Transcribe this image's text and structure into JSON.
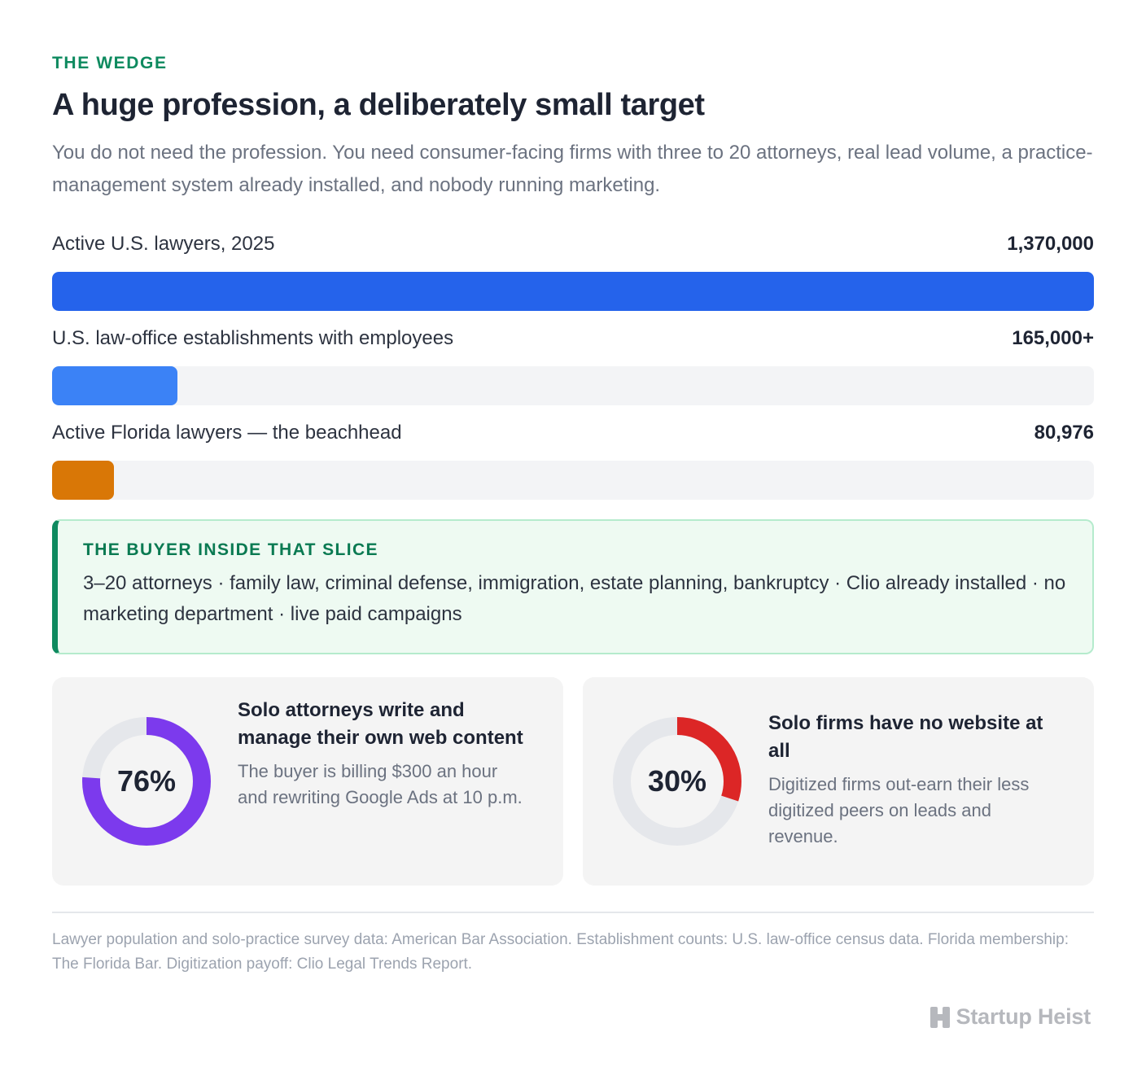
{
  "header": {
    "eyebrow": "THE WEDGE",
    "title": "A huge profession, a deliberately small target",
    "subtitle": "You do not need the profession. You need consumer-facing firms with three to 20 attorneys, real lead volume, a practice-management system already installed, and nobody running marketing."
  },
  "chart_data": {
    "type": "bar",
    "orientation": "horizontal",
    "categories": [
      "Active U.S. lawyers, 2025",
      "U.S. law-office establishments with employees",
      "Active Florida lawyers — the beachhead"
    ],
    "values": [
      1370000,
      165000,
      80976
    ],
    "value_labels": [
      "1,370,000",
      "165,000+",
      "80,976"
    ],
    "colors": [
      "#2563eb",
      "#3b82f6",
      "#d97706"
    ],
    "xlim": [
      0,
      1370000
    ],
    "grid": false
  },
  "callout": {
    "eyebrow": "THE BUYER INSIDE THAT SLICE",
    "text": "3–20 attorneys · family law, criminal defense, immigration, estate planning, bankruptcy · Clio already installed · no marketing department · live paid campaigns"
  },
  "stats": [
    {
      "percent": 76,
      "percent_label": "76%",
      "color": "#7c3aed",
      "title": "Solo attorneys write and manage their own web content",
      "body": "The buyer is billing $300 an hour and rewriting Google Ads at 10 p.m."
    },
    {
      "percent": 30,
      "percent_label": "30%",
      "color": "#dc2626",
      "title": "Solo firms have no website at all",
      "body": "Digitized firms out-earn their less digitized peers on leads and revenue."
    }
  ],
  "footer": {
    "sources": "Lawyer population and solo-practice survey data: American Bar Association. Establishment counts: U.S. law-office census data. Florida membership: The Florida Bar. Digitization payoff: Clio Legal Trends Report.",
    "brand": "Startup Heist",
    "brand_icon": "h-logo-icon"
  }
}
